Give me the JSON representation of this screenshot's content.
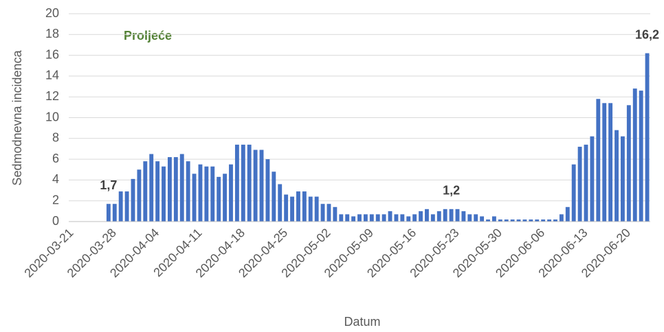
{
  "chart_data": {
    "type": "bar",
    "title": "Proljeće",
    "xlabel": "Datum",
    "ylabel": "Sedmodnevna incidenca",
    "color": "#4472c4",
    "title_color": "#538135",
    "grid": true,
    "ylim": [
      0,
      20
    ],
    "yticks": [
      0,
      2,
      4,
      6,
      8,
      10,
      12,
      14,
      16,
      18,
      20
    ],
    "categories": [
      "2020-03-21",
      null,
      null,
      null,
      null,
      null,
      null,
      "2020-03-28",
      null,
      null,
      null,
      null,
      null,
      null,
      "2020-04-04",
      null,
      null,
      null,
      null,
      null,
      null,
      "2020-04-11",
      null,
      null,
      null,
      null,
      null,
      null,
      "2020-04-18",
      null,
      null,
      null,
      null,
      null,
      null,
      "2020-04-25",
      null,
      null,
      null,
      null,
      null,
      null,
      "2020-05-02",
      null,
      null,
      null,
      null,
      null,
      null,
      "2020-05-09",
      null,
      null,
      null,
      null,
      null,
      null,
      "2020-05-16",
      null,
      null,
      null,
      null,
      null,
      null,
      "2020-05-23",
      null,
      null,
      null,
      null,
      null,
      null,
      "2020-05-30",
      null,
      null,
      null,
      null,
      null,
      null,
      "2020-06-06",
      null,
      null,
      null,
      null,
      null,
      null,
      "2020-06-13",
      null,
      null,
      null,
      null,
      null,
      null,
      "2020-06-20",
      null,
      null,
      null
    ],
    "values": [
      null,
      null,
      null,
      null,
      null,
      null,
      1.7,
      1.7,
      2.9,
      2.9,
      4.1,
      5.0,
      5.8,
      6.5,
      5.8,
      5.3,
      6.2,
      6.2,
      6.5,
      5.8,
      4.6,
      5.5,
      5.3,
      5.3,
      4.3,
      4.6,
      5.5,
      7.4,
      7.4,
      7.4,
      6.9,
      6.9,
      6.0,
      4.8,
      3.6,
      2.6,
      2.4,
      2.9,
      2.9,
      2.4,
      2.4,
      1.7,
      1.7,
      1.4,
      0.7,
      0.7,
      0.5,
      0.7,
      0.7,
      0.7,
      0.7,
      0.7,
      1.0,
      0.7,
      0.7,
      0.5,
      0.7,
      1.0,
      1.2,
      0.7,
      1.0,
      1.2,
      1.2,
      1.2,
      1.0,
      0.7,
      0.7,
      0.5,
      0.2,
      0.5,
      0.2,
      0.2,
      0.2,
      0.2,
      0.2,
      0.2,
      0.2,
      0.2,
      0.2,
      0.2,
      0.7,
      1.4,
      5.5,
      7.2,
      7.4,
      8.2,
      11.8,
      11.4,
      11.4,
      8.8,
      8.2,
      11.2,
      12.8,
      12.6,
      16.2
    ],
    "value_labels": [
      null,
      null,
      null,
      null,
      null,
      null,
      "1,7",
      null,
      null,
      null,
      null,
      null,
      null,
      null,
      null,
      null,
      null,
      null,
      null,
      null,
      null,
      null,
      null,
      null,
      null,
      null,
      null,
      null,
      null,
      null,
      null,
      null,
      null,
      null,
      null,
      null,
      null,
      null,
      null,
      null,
      null,
      null,
      null,
      null,
      null,
      null,
      null,
      null,
      null,
      null,
      null,
      null,
      null,
      null,
      null,
      null,
      null,
      null,
      null,
      null,
      null,
      null,
      "1,2",
      null,
      null,
      null,
      null,
      null,
      null,
      null,
      null,
      null,
      null,
      null,
      null,
      null,
      null,
      null,
      null,
      null,
      null,
      null,
      null,
      null,
      null,
      null,
      null,
      null,
      null,
      null,
      null,
      null,
      null,
      null,
      "16,2"
    ]
  }
}
